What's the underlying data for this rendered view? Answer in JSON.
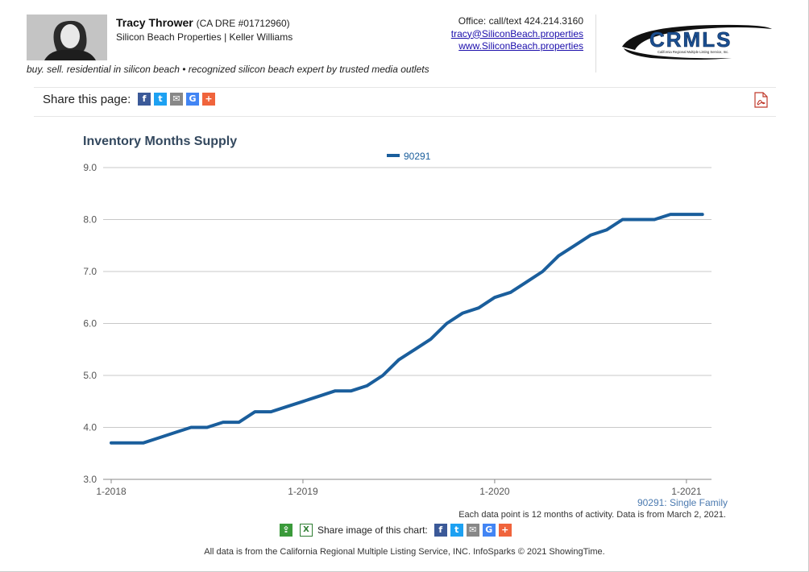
{
  "agent": {
    "name": "Tracy Thrower",
    "dre": "(CA DRE #01712960)",
    "company": "Silicon Beach Properties | Keller Williams",
    "tagline": "buy. sell. residential in silicon beach • recognized silicon beach expert by trusted media outlets"
  },
  "contact": {
    "office": "Office: call/text 424.214.3160",
    "email": "tracy@SiliconBeach.properties",
    "website": "www.SiliconBeach.properties"
  },
  "logo": {
    "text": "CRMLS",
    "subtext": "California Regional Multiple Listing Service, Inc."
  },
  "share": {
    "label": "Share this page:"
  },
  "footer": {
    "share_chart_label": "Share image of this chart:",
    "source": "All data is from the California Regional Multiple Listing Service, INC. InfoSparks © 2021 ShowingTime."
  },
  "colors": {
    "series": "#1a5e9c",
    "title": "#33485e",
    "grid": "#c8c8c8"
  },
  "chart_data": {
    "type": "line",
    "title": "Inventory Months Supply",
    "legend": [
      "90291"
    ],
    "legend_position": "top-center",
    "series": [
      {
        "name": "90291",
        "values": [
          3.7,
          3.7,
          3.7,
          3.8,
          3.9,
          4.0,
          4.0,
          4.1,
          4.1,
          4.3,
          4.3,
          4.4,
          4.5,
          4.6,
          4.7,
          4.7,
          4.8,
          5.0,
          5.3,
          5.5,
          5.7,
          6.0,
          6.2,
          6.3,
          6.5,
          6.6,
          6.8,
          7.0,
          7.3,
          7.5,
          7.7,
          7.8,
          8.0,
          8.0,
          8.0,
          8.1,
          8.1,
          8.1
        ]
      }
    ],
    "x_start": "1-2018",
    "x_ticks": [
      "1-2018",
      "1-2019",
      "1-2020",
      "1-2021"
    ],
    "ylim": [
      3.0,
      9.0
    ],
    "y_ticks": [
      "3.0",
      "4.0",
      "5.0",
      "6.0",
      "7.0",
      "8.0",
      "9.0"
    ],
    "grid": true,
    "subtitle": "90291: Single Family",
    "note": "Each data point is 12 months of activity. Data is from March 2, 2021."
  }
}
